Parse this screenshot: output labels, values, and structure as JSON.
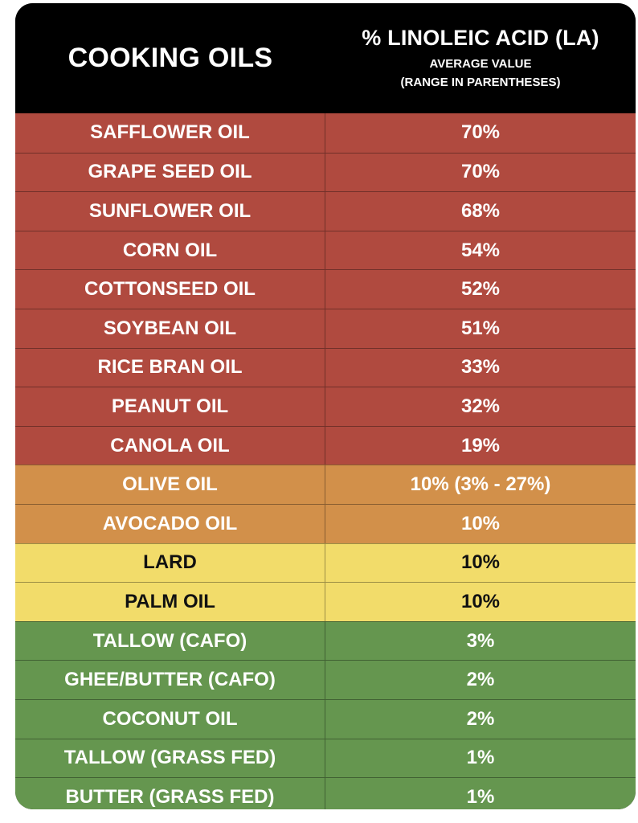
{
  "header": {
    "left_title": "COOKING OILS",
    "right_title": "% LINOLEIC ACID (LA)",
    "right_subtitle_1": "AVERAGE VALUE",
    "right_subtitle_2": "(RANGE IN PARENTHESES)"
  },
  "colors": {
    "header_bg": "#000000",
    "red": "#b04a3f",
    "orange": "#d2904a",
    "yellow": "#f2dc6a",
    "green": "#65964f"
  },
  "rows": [
    {
      "name": "SAFFLOWER OIL",
      "value": "70%",
      "tier": "red"
    },
    {
      "name": "GRAPE SEED OIL",
      "value": "70%",
      "tier": "red"
    },
    {
      "name": "SUNFLOWER OIL",
      "value": "68%",
      "tier": "red"
    },
    {
      "name": "CORN OIL",
      "value": "54%",
      "tier": "red"
    },
    {
      "name": "COTTONSEED OIL",
      "value": "52%",
      "tier": "red"
    },
    {
      "name": "SOYBEAN OIL",
      "value": "51%",
      "tier": "red"
    },
    {
      "name": "RICE BRAN OIL",
      "value": "33%",
      "tier": "red"
    },
    {
      "name": "PEANUT OIL",
      "value": "32%",
      "tier": "red"
    },
    {
      "name": "CANOLA OIL",
      "value": "19%",
      "tier": "red"
    },
    {
      "name": "OLIVE OIL",
      "value": "10% (3% - 27%)",
      "tier": "orange"
    },
    {
      "name": "AVOCADO OIL",
      "value": "10%",
      "tier": "orange"
    },
    {
      "name": "LARD",
      "value": "10%",
      "tier": "yellow"
    },
    {
      "name": "PALM OIL",
      "value": "10%",
      "tier": "yellow"
    },
    {
      "name": "TALLOW (CAFO)",
      "value": "3%",
      "tier": "green"
    },
    {
      "name": "GHEE/BUTTER (CAFO)",
      "value": "2%",
      "tier": "green"
    },
    {
      "name": "COCONUT OIL",
      "value": "2%",
      "tier": "green"
    },
    {
      "name": "TALLOW (GRASS FED)",
      "value": "1%",
      "tier": "green"
    },
    {
      "name": "BUTTER (GRASS FED)",
      "value": "1%",
      "tier": "green"
    }
  ]
}
